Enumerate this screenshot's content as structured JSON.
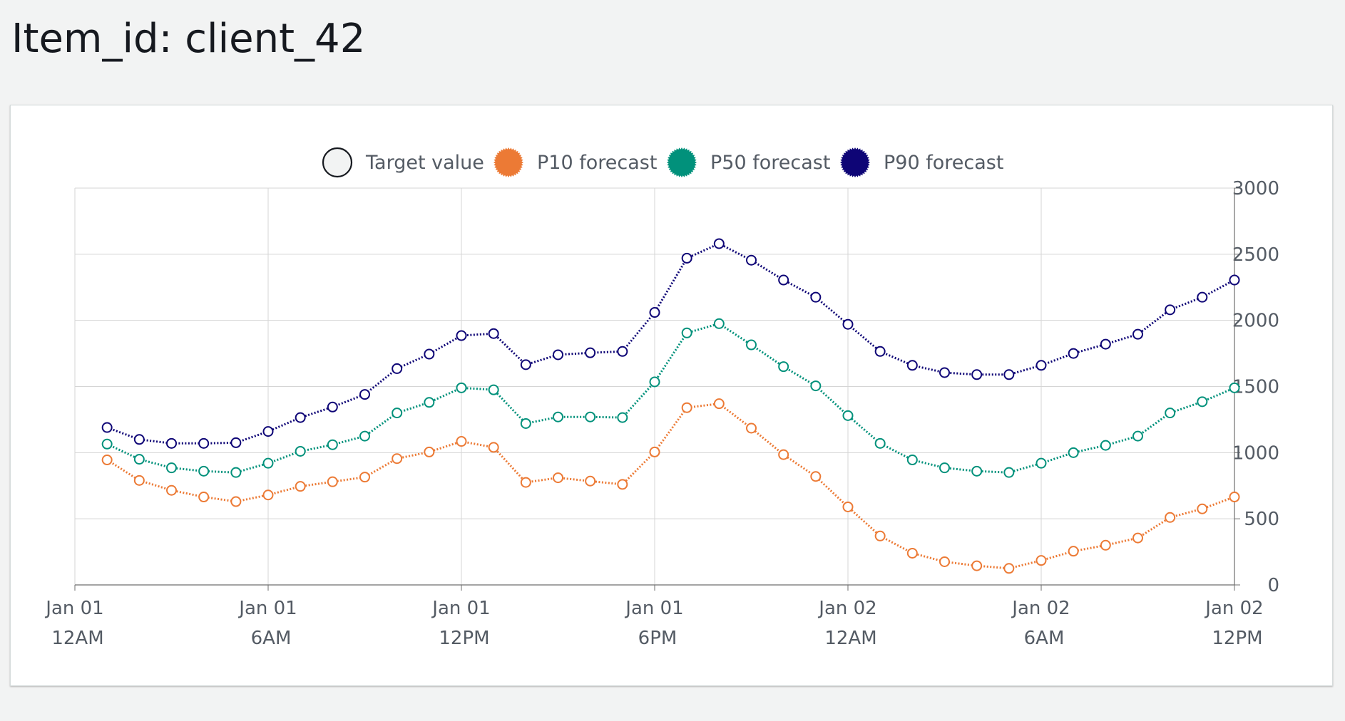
{
  "page": {
    "title": "Item_id: client_42"
  },
  "colors": {
    "target": "#f2f3f3",
    "p10": "#ec7a35",
    "p50": "#01917b",
    "p90": "#0e0576",
    "grid": "#d5d5d5",
    "axis": "#6e6e6e",
    "text": "#545b64",
    "marker_fill": "#ffffff"
  },
  "chart_data": {
    "type": "line",
    "title": "",
    "xlabel": "",
    "ylabel": "",
    "ylim": [
      0,
      3000
    ],
    "y_axis_side": "right",
    "y_ticks": [
      0,
      500,
      1000,
      1500,
      2000,
      2500,
      3000
    ],
    "grid": true,
    "legend_position": "top-center",
    "x_ticks": [
      {
        "hour": 0,
        "line1": "Jan 01",
        "line2": "12AM"
      },
      {
        "hour": 6,
        "line1": "Jan 01",
        "line2": "6AM"
      },
      {
        "hour": 12,
        "line1": "Jan 01",
        "line2": "12PM"
      },
      {
        "hour": 18,
        "line1": "Jan 01",
        "line2": "6PM"
      },
      {
        "hour": 24,
        "line1": "Jan 02",
        "line2": "12AM"
      },
      {
        "hour": 30,
        "line1": "Jan 02",
        "line2": "6AM"
      },
      {
        "hour": 36,
        "line1": "Jan 02",
        "line2": "12PM"
      }
    ],
    "x_range_hours": [
      0,
      36
    ],
    "x_hours": [
      1,
      2,
      3,
      4,
      5,
      6,
      7,
      8,
      9,
      10,
      11,
      12,
      13,
      14,
      15,
      16,
      17,
      18,
      19,
      20,
      21,
      22,
      23,
      24,
      25,
      26,
      27,
      28,
      29,
      30,
      31,
      32,
      33,
      34,
      35,
      36
    ],
    "legend": [
      {
        "key": "target",
        "label": "Target value",
        "icon": "hollow-circle"
      },
      {
        "key": "p10",
        "label": "P10 forecast",
        "icon": "spiky-circle"
      },
      {
        "key": "p50",
        "label": "P50 forecast",
        "icon": "spiky-circle"
      },
      {
        "key": "p90",
        "label": "P90 forecast",
        "icon": "spiky-circle"
      }
    ],
    "series": [
      {
        "key": "p90",
        "name": "P90 forecast",
        "values": [
          1190,
          1100,
          1070,
          1070,
          1075,
          1160,
          1265,
          1345,
          1440,
          1635,
          1745,
          1885,
          1900,
          1665,
          1740,
          1755,
          1765,
          2060,
          2470,
          2580,
          2455,
          2305,
          2175,
          1970,
          1765,
          1660,
          1605,
          1590,
          1590,
          1660,
          1750,
          1820,
          1895,
          2080,
          2175,
          2305
        ]
      },
      {
        "key": "p50",
        "name": "P50 forecast",
        "values": [
          1065,
          950,
          885,
          860,
          850,
          920,
          1010,
          1060,
          1125,
          1300,
          1380,
          1490,
          1475,
          1220,
          1270,
          1270,
          1265,
          1535,
          1905,
          1975,
          1815,
          1650,
          1505,
          1280,
          1070,
          945,
          885,
          860,
          850,
          920,
          1000,
          1055,
          1125,
          1300,
          1385,
          1490
        ]
      },
      {
        "key": "p10",
        "name": "P10 forecast",
        "values": [
          945,
          790,
          715,
          665,
          630,
          680,
          745,
          780,
          815,
          955,
          1005,
          1085,
          1040,
          775,
          810,
          785,
          760,
          1005,
          1340,
          1370,
          1185,
          985,
          820,
          590,
          370,
          240,
          175,
          145,
          125,
          185,
          255,
          300,
          355,
          510,
          575,
          665
        ]
      }
    ]
  }
}
